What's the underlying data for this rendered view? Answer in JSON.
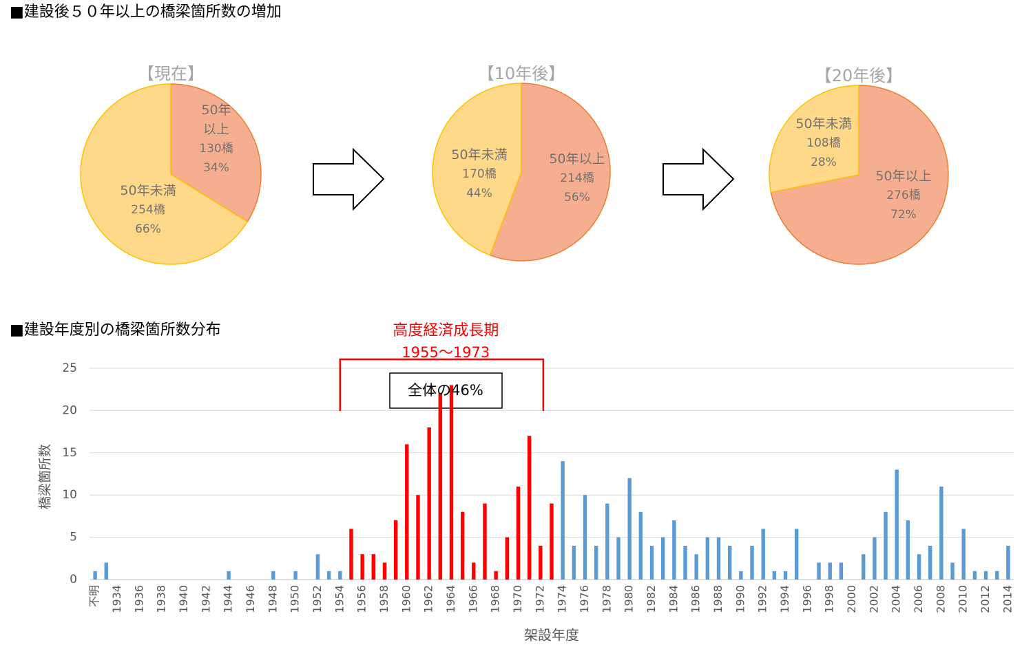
{
  "title": "■建設後５０年以上の橋梁箇所数の増加",
  "chart_data": [
    {
      "type": "pie",
      "title": "【現在】",
      "categories": [
        "50年以上",
        "50年未満"
      ],
      "values": [
        130,
        254
      ],
      "value_labels": [
        "130橋",
        "254橋"
      ],
      "percents": [
        {
          "value": 34,
          "label": "34%"
        },
        {
          "value": 66,
          "label": "66%"
        }
      ],
      "colors": [
        "#f6ae90",
        "#ffd98a"
      ],
      "edge_colors": [
        "#ed7d31",
        "#ffc000"
      ]
    },
    {
      "type": "pie",
      "title": "【10年後】",
      "categories": [
        "50年以上",
        "50年未満"
      ],
      "values": [
        214,
        170
      ],
      "value_labels": [
        "214橋",
        "170橋"
      ],
      "percents": [
        {
          "value": 56,
          "label": "56%"
        },
        {
          "value": 44,
          "label": "44%"
        }
      ],
      "colors": [
        "#f6ae90",
        "#ffd98a"
      ],
      "edge_colors": [
        "#ed7d31",
        "#ffc000"
      ]
    },
    {
      "type": "pie",
      "title": "【20年後】",
      "categories": [
        "50年以上",
        "50年未満"
      ],
      "values": [
        276,
        108
      ],
      "value_labels": [
        "276橋",
        "108橋"
      ],
      "percents": [
        {
          "value": 72,
          "label": "72%"
        },
        {
          "value": 28,
          "label": "28%"
        }
      ],
      "colors": [
        "#f6ae90",
        "#ffd98a"
      ],
      "edge_colors": [
        "#ed7d31",
        "#ffc000"
      ]
    },
    {
      "type": "bar",
      "title": "■建設年度別の橋梁箇所数分布",
      "x_label": "架設年度",
      "y_label": "橋梁箇所数",
      "annotations": [
        "高度経済成長期",
        "1955～1973",
        "全体の46%"
      ],
      "categories": [
        "不明",
        null,
        "1934",
        null,
        "1936",
        null,
        "1938",
        null,
        "1940",
        null,
        "1942",
        null,
        "1944",
        null,
        "1946",
        null,
        "1948",
        null,
        "1950",
        null,
        "1952",
        null,
        "1954",
        null,
        "1956",
        null,
        "1958",
        null,
        "1960",
        null,
        "1962",
        null,
        "1964",
        null,
        "1966",
        null,
        "1968",
        null,
        "1970",
        null,
        "1972",
        null,
        "1974",
        null,
        "1976",
        null,
        "1978",
        null,
        "1980",
        null,
        "1982",
        null,
        "1984",
        null,
        "1986",
        null,
        "1988",
        null,
        "1990",
        null,
        "1992",
        null,
        "1994",
        null,
        "1996",
        null,
        "1998",
        null,
        "2000",
        null,
        "2002",
        null,
        "2004",
        null,
        "2006",
        null,
        "2008",
        null,
        "2010",
        null,
        "2012",
        null,
        "2014"
      ],
      "values": [
        1,
        2,
        0,
        0,
        0,
        0,
        0,
        0,
        0,
        0,
        0,
        0,
        1,
        0,
        0,
        0,
        1,
        0,
        1,
        0,
        3,
        1,
        1,
        6,
        3,
        3,
        2,
        7,
        16,
        10,
        18,
        22,
        23,
        8,
        2,
        9,
        1,
        5,
        11,
        17,
        4,
        9,
        14,
        4,
        10,
        4,
        9,
        5,
        12,
        8,
        4,
        5,
        7,
        4,
        3,
        5,
        5,
        4,
        1,
        4,
        6,
        1,
        1,
        6,
        0,
        2,
        2,
        2,
        0,
        3,
        5,
        8,
        13,
        7,
        3,
        4,
        11,
        2,
        6,
        1,
        1,
        1,
        4
      ],
      "colors": [
        "#5b9bd5",
        "#5b9bd5",
        "#5b9bd5",
        "#5b9bd5",
        "#5b9bd5",
        "#5b9bd5",
        "#5b9bd5",
        "#5b9bd5",
        "#5b9bd5",
        "#5b9bd5",
        "#5b9bd5",
        "#5b9bd5",
        "#5b9bd5",
        "#5b9bd5",
        "#5b9bd5",
        "#5b9bd5",
        "#5b9bd5",
        "#5b9bd5",
        "#5b9bd5",
        "#5b9bd5",
        "#5b9bd5",
        "#5b9bd5",
        "#5b9bd5",
        "#ff0000",
        "#ff0000",
        "#ff0000",
        "#ff0000",
        "#ff0000",
        "#ff0000",
        "#ff0000",
        "#ff0000",
        "#ff0000",
        "#ff0000",
        "#ff0000",
        "#ff0000",
        "#ff0000",
        "#ff0000",
        "#ff0000",
        "#ff0000",
        "#ff0000",
        "#ff0000",
        "#ff0000",
        "#5b9bd5",
        "#5b9bd5",
        "#5b9bd5",
        "#5b9bd5",
        "#5b9bd5",
        "#5b9bd5",
        "#5b9bd5",
        "#5b9bd5",
        "#5b9bd5",
        "#5b9bd5",
        "#5b9bd5",
        "#5b9bd5",
        "#5b9bd5",
        "#5b9bd5",
        "#5b9bd5",
        "#5b9bd5",
        "#5b9bd5",
        "#5b9bd5",
        "#5b9bd5",
        "#5b9bd5",
        "#5b9bd5",
        "#5b9bd5",
        "#5b9bd5",
        "#5b9bd5",
        "#5b9bd5",
        "#5b9bd5",
        "#5b9bd5",
        "#5b9bd5",
        "#5b9bd5",
        "#5b9bd5",
        "#5b9bd5",
        "#5b9bd5",
        "#5b9bd5",
        "#5b9bd5",
        "#5b9bd5",
        "#5b9bd5",
        "#5b9bd5",
        "#5b9bd5",
        "#5b9bd5",
        "#5b9bd5",
        "#5b9bd5"
      ],
      "ylim": [
        0,
        25
      ],
      "yticks": [
        0,
        5,
        10,
        15,
        20,
        25
      ],
      "grid": true
    }
  ]
}
